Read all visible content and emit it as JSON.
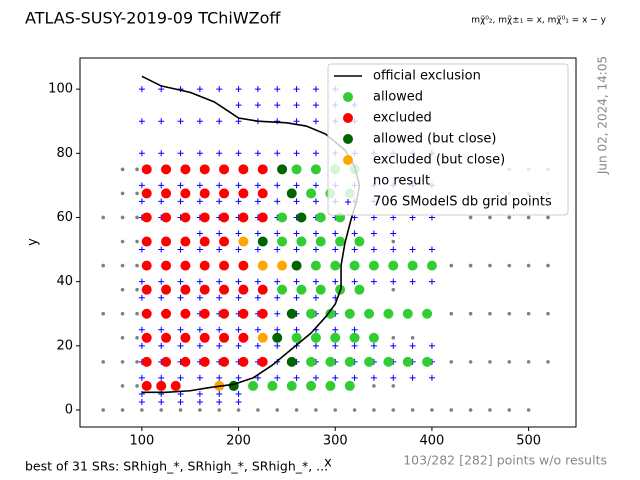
{
  "chart_data": {
    "type": "scatter",
    "title": "ATLAS-SUSY-2019-09 TChiWZoff",
    "subtitle": "mχ̃⁰₂, mχ̃±₁ = x, mχ̃⁰₁ = x − y",
    "timestamp": "Jun 02, 2024, 14:05",
    "footnote_left": "best of 31 SRs: SRhigh_*, SRhigh_*, SRhigh_*, ...",
    "footnote_right": "103/282 [282] points w/o results",
    "x_label": "x",
    "y_label": "y",
    "xlim": [
      36,
      549
    ],
    "ylim": [
      -5.3,
      109.7
    ],
    "xticks": [
      100,
      200,
      300,
      400,
      500
    ],
    "yticks": [
      0,
      20,
      40,
      60,
      80,
      100
    ],
    "grid": false,
    "legend": "upper right",
    "series": [
      {
        "name": "official exclusion",
        "color": "#000000",
        "marker": "line",
        "x": [
          100,
          120,
          150,
          175,
          190,
          200,
          220,
          250,
          270,
          290,
          310,
          320,
          325,
          322,
          316,
          310,
          306,
          306,
          300,
          290,
          275,
          255,
          235,
          215,
          195,
          170,
          150,
          125,
          100
        ],
        "y": [
          104,
          101,
          99,
          96,
          93,
          91,
          90,
          89.5,
          88.5,
          86,
          81,
          76,
          70,
          65,
          59,
          52,
          45,
          38,
          33,
          29,
          24,
          19,
          14,
          10,
          8,
          7,
          6,
          5.5,
          5.5
        ]
      },
      {
        "name": "allowed",
        "color": "#32cd32",
        "marker": "o",
        "rows": [
          {
            "y": 75,
            "x": [
              260,
              280,
              300,
              320
            ]
          },
          {
            "y": 67.5,
            "x": [
              275,
              295,
              315
            ]
          },
          {
            "y": 60,
            "x": [
              245,
              285,
              305
            ]
          },
          {
            "y": 52.5,
            "x": [
              245,
              265,
              285,
              305,
              325
            ]
          },
          {
            "y": 45,
            "x": [
              280,
              300,
              320,
              340,
              360,
              380,
              400
            ]
          },
          {
            "y": 37.5,
            "x": [
              245,
              265,
              285,
              305,
              325
            ]
          },
          {
            "y": 30,
            "x": [
              275,
              295,
              315,
              335,
              355,
              375,
              395
            ]
          },
          {
            "y": 22.5,
            "x": [
              260,
              280,
              300,
              320,
              340
            ]
          },
          {
            "y": 15,
            "x": [
              275,
              295,
              315,
              335,
              355,
              375,
              395
            ]
          },
          {
            "y": 7.5,
            "x": [
              215,
              235,
              255,
              275,
              295,
              315
            ]
          }
        ]
      },
      {
        "name": "excluded",
        "color": "#ff0000",
        "marker": "o",
        "rows": [
          {
            "y": 75,
            "x": [
              105,
              125,
              145,
              165,
              185,
              205,
              225
            ]
          },
          {
            "y": 67.5,
            "x": [
              105,
              125,
              145,
              165,
              185,
              205,
              225
            ]
          },
          {
            "y": 60,
            "x": [
              105,
              125,
              145,
              165,
              185,
              205,
              225
            ]
          },
          {
            "y": 52.5,
            "x": [
              105,
              125,
              145,
              165,
              185
            ]
          },
          {
            "y": 45,
            "x": [
              105,
              125,
              145,
              165,
              185,
              205
            ]
          },
          {
            "y": 37.5,
            "x": [
              105,
              125,
              145,
              165,
              185,
              205,
              225
            ]
          },
          {
            "y": 30,
            "x": [
              105,
              125,
              145,
              165,
              185,
              205,
              225
            ]
          },
          {
            "y": 22.5,
            "x": [
              105,
              125,
              145,
              165,
              185,
              205
            ]
          },
          {
            "y": 15,
            "x": [
              105,
              125,
              145,
              165,
              185,
              205,
              225
            ]
          },
          {
            "y": 7.5,
            "x": [
              105,
              120,
              135
            ]
          }
        ]
      },
      {
        "name": "allowed (but close)",
        "color": "#006400",
        "marker": "o",
        "rows": [
          {
            "y": 75,
            "x": [
              245
            ]
          },
          {
            "y": 67.5,
            "x": [
              255
            ]
          },
          {
            "y": 60,
            "x": [
              265
            ]
          },
          {
            "y": 52.5,
            "x": [
              225
            ]
          },
          {
            "y": 45,
            "x": [
              260
            ]
          },
          {
            "y": 30,
            "x": [
              255
            ]
          },
          {
            "y": 22.5,
            "x": [
              240
            ]
          },
          {
            "y": 15,
            "x": [
              255
            ]
          },
          {
            "y": 7.5,
            "x": [
              195
            ]
          }
        ]
      },
      {
        "name": "excluded (but close)",
        "color": "#ffa500",
        "marker": "o",
        "rows": [
          {
            "y": 52.5,
            "x": [
              205
            ]
          },
          {
            "y": 45,
            "x": [
              225,
              245
            ]
          },
          {
            "y": 22.5,
            "x": [
              225
            ]
          },
          {
            "y": 7.5,
            "x": [
              180
            ]
          }
        ]
      },
      {
        "name": "no result",
        "color": "#808080",
        "marker": "dot",
        "rows": [
          {
            "y": 0,
            "x": [
              60,
              80,
              100,
              120,
              140,
              160,
              180,
              200,
              220,
              240,
              260,
              280,
              300,
              320,
              340,
              360,
              380,
              400,
              420,
              440,
              460,
              480,
              500
            ]
          },
          {
            "y": 7.5,
            "x": [
              80,
              95,
              340,
              360
            ]
          },
          {
            "y": 15,
            "x": [
              60,
              80,
              95,
              420,
              440,
              460,
              480,
              500,
              520
            ]
          },
          {
            "y": 22.5,
            "x": [
              80,
              95,
              360,
              380
            ]
          },
          {
            "y": 30,
            "x": [
              60,
              80,
              95,
              420,
              440,
              460,
              480,
              500,
              520
            ]
          },
          {
            "y": 37.5,
            "x": [
              80,
              95,
              360
            ]
          },
          {
            "y": 45,
            "x": [
              60,
              80,
              95,
              420,
              440,
              460,
              480,
              500,
              520
            ]
          },
          {
            "y": 52.5,
            "x": [
              80,
              95,
              360
            ]
          },
          {
            "y": 60,
            "x": [
              60,
              80,
              95,
              440,
              460,
              480,
              500,
              520
            ]
          },
          {
            "y": 67.5,
            "x": [
              80,
              95,
              480,
              500,
              520
            ]
          },
          {
            "y": 75,
            "x": [
              80,
              95,
              480,
              500,
              520
            ]
          }
        ]
      },
      {
        "name": "706 SModelS db grid points",
        "color": "#0000ff",
        "marker": "plus",
        "rows": [
          {
            "y": 100,
            "x": [
              100,
              120,
              140,
              160,
              180,
              200,
              220,
              240,
              260,
              280,
              300
            ]
          },
          {
            "y": 95,
            "x": [
              200,
              220,
              240,
              260,
              280,
              300,
              320
            ]
          },
          {
            "y": 90,
            "x": [
              100,
              120,
              140,
              160,
              180,
              200,
              220,
              240,
              260,
              280,
              300,
              320
            ]
          },
          {
            "y": 80,
            "x": [
              100,
              120,
              140,
              160,
              180,
              200,
              220,
              240,
              260,
              280,
              300,
              320,
              340,
              360,
              380,
              400
            ]
          },
          {
            "y": 70,
            "x": [
              100,
              120,
              140,
              160,
              180,
              200,
              220,
              240,
              260,
              280,
              300,
              320,
              340,
              360,
              380,
              400
            ]
          },
          {
            "y": 65,
            "x": [
              100,
              120,
              140,
              160,
              180,
              200,
              220,
              240,
              260,
              280,
              300,
              320,
              340
            ]
          },
          {
            "y": 60,
            "x": [
              100,
              120,
              140,
              160,
              180,
              200,
              220,
              240,
              260,
              280,
              300,
              320,
              340,
              360,
              380,
              400
            ]
          },
          {
            "y": 55,
            "x": [
              160,
              180,
              200,
              220,
              240,
              260,
              280,
              300,
              320,
              340,
              360
            ]
          },
          {
            "y": 50,
            "x": [
              100,
              120,
              140,
              160,
              180,
              200,
              220,
              240,
              260,
              280,
              300,
              320,
              340,
              360,
              380,
              400
            ]
          },
          {
            "y": 40,
            "x": [
              100,
              120,
              140,
              160,
              180,
              200,
              220,
              240,
              260,
              280,
              300,
              320,
              340,
              360,
              380,
              400
            ]
          },
          {
            "y": 35,
            "x": [
              100,
              120,
              140,
              160,
              180,
              200,
              220,
              240,
              260,
              280,
              300
            ]
          },
          {
            "y": 30,
            "x": [
              160,
              180,
              200,
              220,
              240,
              260,
              280,
              300
            ]
          },
          {
            "y": 25,
            "x": [
              100,
              120,
              140,
              160,
              180,
              200,
              220,
              240,
              260,
              280,
              300,
              320
            ]
          },
          {
            "y": 20,
            "x": [
              100,
              120,
              140,
              160,
              180,
              200,
              220,
              240,
              260,
              280,
              300,
              320,
              340,
              360,
              380,
              400
            ]
          },
          {
            "y": 15,
            "x": [
              100,
              120,
              140,
              160,
              180,
              200,
              220,
              240,
              260,
              280,
              300,
              320,
              340,
              360,
              380,
              400
            ]
          },
          {
            "y": 10,
            "x": [
              100,
              120,
              140,
              160,
              180,
              200,
              220,
              240,
              260,
              280,
              300,
              320,
              340,
              360,
              380,
              400
            ]
          },
          {
            "y": 5,
            "x": [
              100,
              120,
              140,
              160,
              180,
              200
            ]
          },
          {
            "y": 2.5,
            "x": [
              100,
              120,
              140,
              160,
              180,
              200
            ]
          }
        ]
      }
    ]
  }
}
